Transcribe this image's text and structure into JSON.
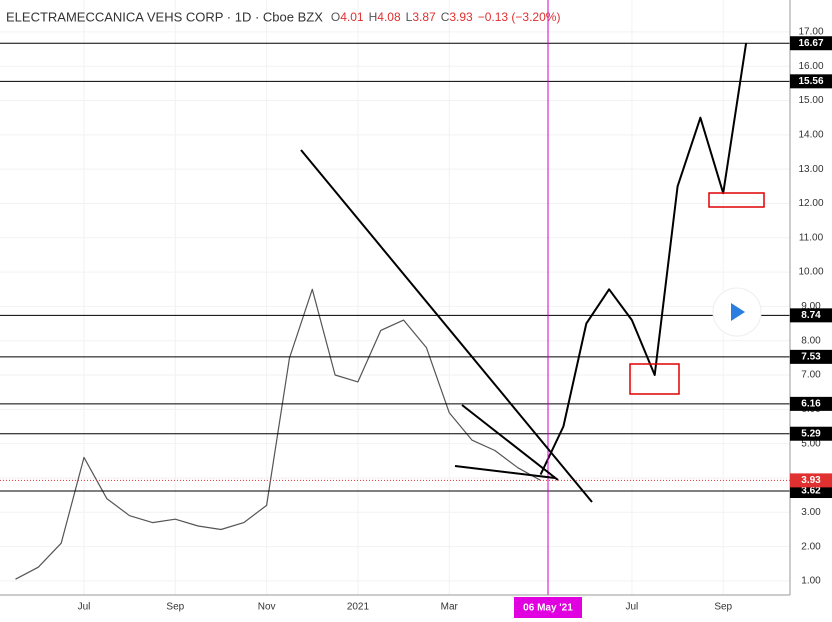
{
  "chart_data": {
    "type": "line",
    "title": "ELECTRAMECCANICA VEHS CORP · 1D · Cboe BZX",
    "ohlc": [
      {
        "key": "O",
        "value": "4.01"
      },
      {
        "key": "H",
        "value": "4.08"
      },
      {
        "key": "L",
        "value": "3.87"
      },
      {
        "key": "C",
        "value": "3.93"
      }
    ],
    "change": "−0.13 (−3.20%)",
    "categories": [
      null,
      null,
      null,
      "Jul",
      null,
      null,
      null,
      "Sep",
      null,
      null,
      null,
      "Nov",
      null,
      null,
      null,
      "2021",
      null,
      null,
      null,
      "Mar",
      null,
      null,
      null,
      null,
      null,
      null,
      null,
      "Jul",
      null,
      null,
      null,
      "Sep",
      null,
      null,
      null
    ],
    "crosshair": {
      "label": "06 May '21"
    },
    "series": [
      {
        "color": "#555555",
        "values": [
          1.05,
          1.4,
          2.1,
          4.6,
          3.4,
          2.9,
          2.7,
          2.8,
          2.6,
          2.5,
          2.7,
          3.2,
          7.5,
          9.5,
          7.0,
          6.8,
          8.3,
          8.6,
          7.8,
          5.9,
          5.1,
          4.8,
          4.3,
          3.93,
          null,
          null,
          null,
          null,
          null,
          null,
          null,
          null,
          null,
          null,
          null
        ]
      },
      {
        "color": "#000000",
        "values": [
          null,
          null,
          null,
          null,
          null,
          null,
          null,
          null,
          null,
          null,
          null,
          null,
          null,
          null,
          null,
          null,
          null,
          null,
          null,
          null,
          null,
          null,
          null,
          4.1,
          5.5,
          8.5,
          9.5,
          8.6,
          7.0,
          12.5,
          14.5,
          12.3,
          16.67,
          null,
          null
        ]
      }
    ],
    "levels": [
      16.67,
      15.56,
      8.74,
      7.53,
      6.16,
      5.29,
      3.62
    ],
    "last_price": {
      "value": 3.93,
      "color": "#e03030"
    },
    "ylim": [
      0.59,
      17.93
    ],
    "yticks": [
      {
        "value": 1,
        "label": "1.00"
      },
      {
        "value": 2,
        "label": "2.00"
      },
      {
        "value": 3,
        "label": "3.00"
      },
      {
        "value": 4,
        "label": "4.00"
      },
      {
        "value": 5,
        "label": "5.00"
      },
      {
        "value": 6,
        "label": "6.00"
      },
      {
        "value": 7,
        "label": "7.00"
      },
      {
        "value": 8,
        "label": "8.00"
      },
      {
        "value": 9,
        "label": "9.00"
      },
      {
        "value": 10,
        "label": "10.00"
      },
      {
        "value": 11,
        "label": "11.00"
      },
      {
        "value": 12,
        "label": "12.00"
      },
      {
        "value": 13,
        "label": "13.00"
      },
      {
        "value": 14,
        "label": "14.00"
      },
      {
        "value": 15,
        "label": "15.00"
      },
      {
        "value": 16,
        "label": "16.00"
      },
      {
        "value": 17,
        "label": "17.00"
      }
    ],
    "grid": true
  }
}
